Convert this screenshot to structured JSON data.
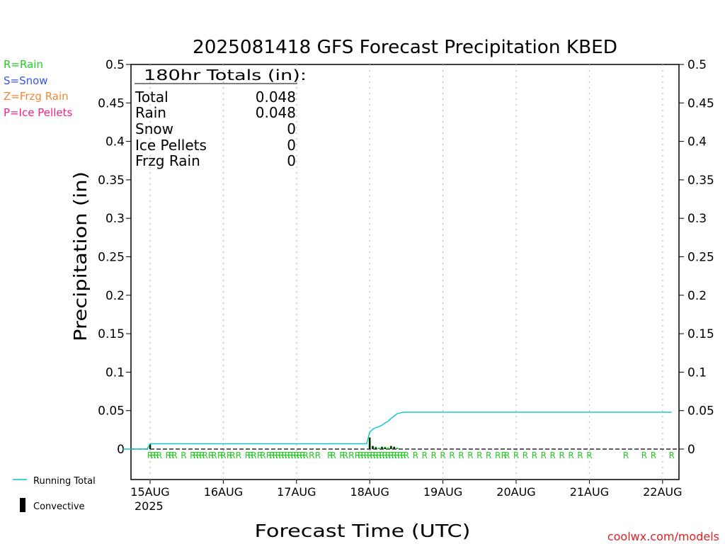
{
  "chart_data": {
    "type": "bar",
    "title": "2025081418 GFS Forecast Precipitation KBED",
    "xlabel": "Forecast Time (UTC)",
    "ylabel": "Precipitation (in)",
    "ylim": [
      0,
      0.5
    ],
    "yticks": [
      "0",
      "0.05",
      "0.1",
      "0.15",
      "0.2",
      "0.25",
      "0.3",
      "0.35",
      "0.4",
      "0.45",
      "0.5"
    ],
    "xlim_hours": [
      -3,
      177
    ],
    "xticks": [
      {
        "label": "15AUG",
        "hour": 6,
        "sub": "2025"
      },
      {
        "label": "16AUG",
        "hour": 30
      },
      {
        "label": "17AUG",
        "hour": 54
      },
      {
        "label": "18AUG",
        "hour": 78
      },
      {
        "label": "19AUG",
        "hour": 102
      },
      {
        "label": "20AUG",
        "hour": 126
      },
      {
        "label": "21AUG",
        "hour": 150
      },
      {
        "label": "22AUG",
        "hour": 174
      }
    ],
    "totals": {
      "header": "180hr Totals (in):",
      "rows": [
        {
          "label": "Total",
          "value": "0.048"
        },
        {
          "label": "Rain",
          "value": "0.048"
        },
        {
          "label": "Snow",
          "value": "0"
        },
        {
          "label": "Ice Pellets",
          "value": "0"
        },
        {
          "label": "Frzg Rain",
          "value": "0"
        }
      ]
    },
    "ptype_legend": [
      {
        "text": "R=Rain",
        "color": "#22cc22"
      },
      {
        "text": "S=Snow",
        "color": "#3355ee"
      },
      {
        "text": "Z=Frzg Rain",
        "color": "#ee8833"
      },
      {
        "text": "P=Ice Pellets",
        "color": "#ee2288"
      }
    ],
    "series_legend": [
      {
        "text": "Running Total",
        "color": "#00c8c8"
      },
      {
        "text": "Convective",
        "color": "#000000"
      }
    ],
    "precip_bars": {
      "name": "Rain",
      "color": "#22cc22",
      "hours": [
        6,
        78,
        79,
        80,
        81,
        82,
        83,
        84,
        85,
        86,
        87
      ],
      "values": [
        0.007,
        0.015,
        0.004,
        0.003,
        0.002,
        0.003,
        0.003,
        0.002,
        0.004,
        0.003,
        0.002
      ]
    },
    "convective_bars": {
      "name": "Convective",
      "color": "#000000",
      "hours": [
        6,
        78,
        79,
        80,
        82,
        83,
        85,
        86
      ],
      "values": [
        0.006,
        0.015,
        0.004,
        0.002,
        0.003,
        0.002,
        0.004,
        0.003
      ]
    },
    "running_total": {
      "name": "Running Total",
      "color": "#00c8c8",
      "hours": [
        -3,
        5,
        6,
        77,
        78,
        79,
        80,
        81,
        82,
        83,
        84,
        85,
        86,
        87,
        88,
        89,
        90,
        177
      ],
      "values": [
        0,
        0,
        0.007,
        0.007,
        0.022,
        0.026,
        0.028,
        0.029,
        0.031,
        0.034,
        0.036,
        0.04,
        0.043,
        0.046,
        0.047,
        0.048,
        0.048,
        0.048
      ]
    },
    "ptype_markers": {
      "symbol": "R",
      "color": "#22cc22",
      "hours": [
        6,
        7,
        8,
        9,
        12,
        13,
        14,
        17,
        20,
        21,
        22,
        23,
        24,
        26,
        27,
        29,
        30,
        32,
        33,
        35,
        38,
        39,
        40,
        42,
        43,
        45,
        46,
        47,
        48,
        49,
        50,
        51,
        52,
        53,
        54,
        55,
        56,
        57,
        59,
        61,
        65,
        66,
        69,
        70,
        72,
        74,
        75,
        76,
        77,
        78,
        79,
        80,
        81,
        82,
        83,
        84,
        85,
        86,
        87,
        88,
        89,
        90,
        93,
        96,
        99,
        102,
        105,
        108,
        111,
        114,
        117,
        120,
        122,
        123,
        126,
        129,
        132,
        135,
        138,
        141,
        144,
        147,
        150,
        162,
        168,
        171,
        177
      ]
    },
    "credit": "coolwx.com/models"
  }
}
